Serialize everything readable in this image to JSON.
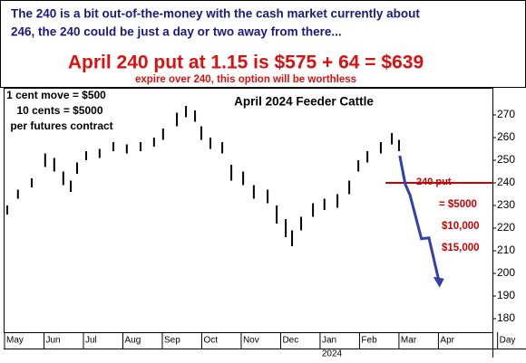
{
  "header": {
    "lines": [
      "The 240 is a bit out-of-the-money with the cash market currently about",
      "246, the 240 could be just a day or two away from there..."
    ],
    "headline": "April 240 put at 1.15 is $575 + 64 = $639",
    "note": "expire over 240, this option will be worthless"
  },
  "chart_data": {
    "type": "price-bars",
    "title": "April 2024 Feeder Cattle",
    "info": [
      "1 cent move = $500",
      "10 cents = $5000",
      "per futures contract"
    ],
    "x": [
      0.07,
      0.34,
      0.69,
      1.03,
      1.26,
      1.49,
      1.68,
      1.84,
      2.07,
      2.41,
      2.76,
      3.1,
      3.45,
      3.79,
      4.02,
      4.37,
      4.6,
      4.83,
      4.99,
      5.22,
      5.52,
      5.75,
      6.05,
      6.32,
      6.67,
      6.9,
      7.13,
      7.29,
      7.52,
      7.82,
      8.11,
      8.44,
      8.74,
      8.97,
      9.2,
      9.54,
      9.82,
      10.0
    ],
    "series": [
      {
        "name": "price",
        "color": "#000000",
        "high": [
          230,
          237,
          242,
          253,
          251,
          245,
          241,
          249,
          254,
          255,
          258,
          257,
          258,
          260,
          264,
          271,
          274,
          272,
          265,
          260,
          258,
          248,
          245,
          239,
          237,
          230,
          224,
          219,
          225,
          231,
          233,
          235,
          241,
          250,
          254,
          258,
          262,
          259
        ],
        "low": [
          226,
          233,
          238,
          247,
          245,
          239,
          236,
          244,
          250,
          251,
          254,
          253,
          254,
          256,
          259,
          265,
          269,
          267,
          259,
          255,
          253,
          241,
          239,
          233,
          231,
          222,
          216,
          212,
          219,
          225,
          228,
          229,
          235,
          245,
          249,
          253,
          257,
          254
        ]
      }
    ],
    "projection": {
      "color": "#3040b0",
      "x": [
        10.02,
        10.16,
        10.28,
        10.57,
        10.76,
        11.03
      ],
      "values": [
        252,
        239.4,
        234.6,
        215.3,
        215.7,
        195.3
      ]
    },
    "strike": {
      "label": "240 put",
      "value": 240,
      "color": "#cc0000",
      "x_start": 9.66
    },
    "payoffs": [
      "= $5000",
      "$10,000",
      "$15,000"
    ],
    "ylim": [
      174,
      282
    ],
    "yticks": [
      180,
      190,
      200,
      210,
      220,
      230,
      240,
      250,
      260,
      270
    ],
    "xlim": [
      0,
      12.37
    ],
    "xticks": [
      {
        "value": 0,
        "label": "May"
      },
      {
        "value": 1,
        "label": "Jun"
      },
      {
        "value": 2,
        "label": "Jul"
      },
      {
        "value": 3,
        "label": "Aug"
      },
      {
        "value": 4,
        "label": "Sep"
      },
      {
        "value": 5,
        "label": "Oct"
      },
      {
        "value": 6,
        "label": "Nov"
      },
      {
        "value": 7,
        "label": "Dec"
      },
      {
        "value": 8,
        "label": "Jan"
      },
      {
        "value": 9,
        "label": "Feb"
      },
      {
        "value": 10,
        "label": "Mar"
      },
      {
        "value": 11,
        "label": "Apr"
      },
      {
        "value": 12.5,
        "label": "Day"
      }
    ],
    "year_label": "2024"
  }
}
